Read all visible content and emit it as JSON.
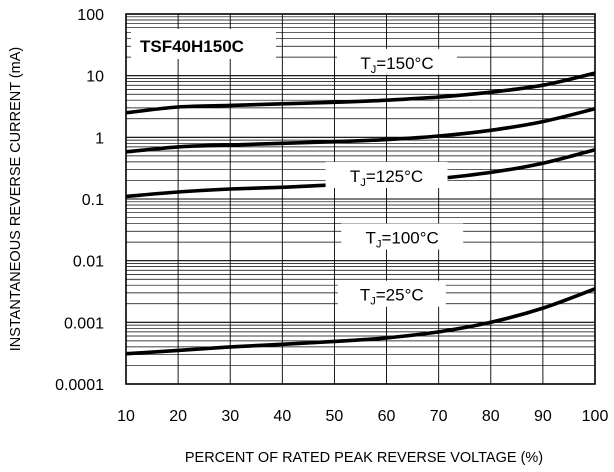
{
  "chart_data": {
    "type": "line",
    "title": "TSF40H150C",
    "xlabel": "PERCENT OF RATED PEAK REVERSE VOLTAGE (%)",
    "ylabel": "INSTANTANEOUS REVERSE CURRENT (mA)",
    "xlim": [
      10,
      100
    ],
    "ylim": [
      0.0001,
      100
    ],
    "yscale": "log",
    "grid": true,
    "x_ticks": [
      "10",
      "20",
      "30",
      "40",
      "50",
      "60",
      "70",
      "80",
      "90",
      "100"
    ],
    "y_ticks": [
      "100",
      "10",
      "1",
      "0.1",
      "0.01",
      "0.001",
      "0.0001"
    ],
    "x": [
      10,
      20,
      30,
      40,
      50,
      60,
      70,
      80,
      90,
      100
    ],
    "series": [
      {
        "label_prefix": "T",
        "label_sub": "J",
        "label_suffix": "=150°C",
        "values": [
          2.5,
          3.1,
          3.3,
          3.5,
          3.7,
          4.0,
          4.5,
          5.4,
          7.0,
          11.0
        ]
      },
      {
        "label_prefix": "T",
        "label_sub": "J",
        "label_suffix": "=125°C",
        "values": [
          0.58,
          0.7,
          0.75,
          0.8,
          0.85,
          0.92,
          1.05,
          1.3,
          1.8,
          2.9
        ]
      },
      {
        "label_prefix": "T",
        "label_sub": "J",
        "label_suffix": "=100°C",
        "values": [
          0.11,
          0.13,
          0.145,
          0.155,
          0.17,
          0.185,
          0.215,
          0.27,
          0.38,
          0.63
        ]
      },
      {
        "label_prefix": "T",
        "label_sub": "J",
        "label_suffix": "=25°C",
        "values": [
          0.00031,
          0.00035,
          0.0004,
          0.00044,
          0.00049,
          0.00056,
          0.0007,
          0.001,
          0.0017,
          0.0035
        ]
      }
    ]
  }
}
